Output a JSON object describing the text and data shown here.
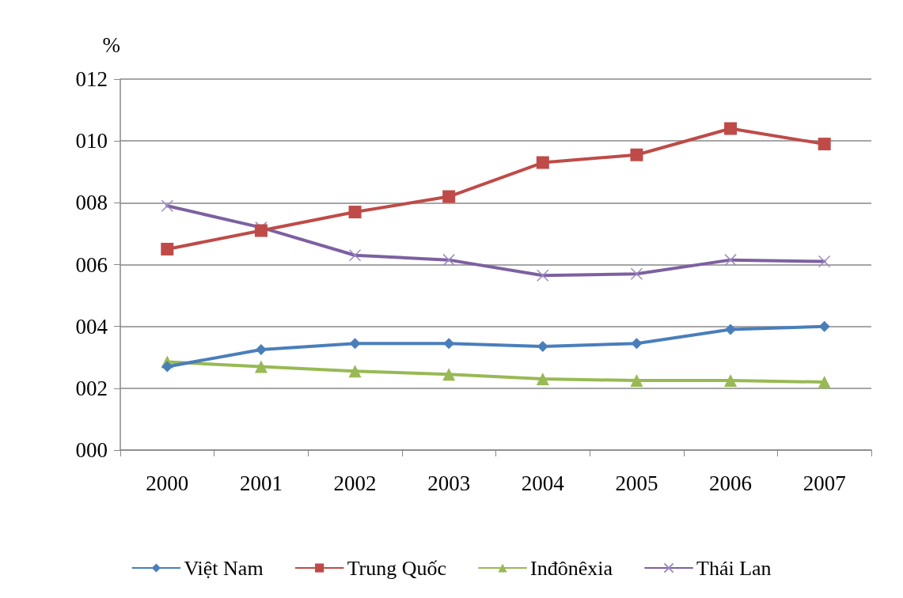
{
  "chart_data": {
    "type": "line",
    "ylabel": "%",
    "categories": [
      "2000",
      "2001",
      "2002",
      "2003",
      "2004",
      "2005",
      "2006",
      "2007"
    ],
    "series": [
      {
        "name": "Việt Nam",
        "color": "#4a7ebb",
        "marker": "diamond",
        "values": [
          2.7,
          3.25,
          3.45,
          3.45,
          3.35,
          3.45,
          3.9,
          4.0
        ]
      },
      {
        "name": "Trung Quốc",
        "color": "#be4b48",
        "marker": "square",
        "values": [
          6.5,
          7.1,
          7.7,
          8.2,
          9.3,
          9.55,
          10.4,
          9.9
        ]
      },
      {
        "name": "Inđônêxia",
        "color": "#98b954",
        "marker": "triangle",
        "values": [
          2.85,
          2.7,
          2.55,
          2.45,
          2.3,
          2.25,
          2.25,
          2.2
        ]
      },
      {
        "name": "Thái Lan",
        "color": "#7d60a0",
        "marker": "cross",
        "values": [
          7.9,
          7.2,
          6.3,
          6.15,
          5.65,
          5.7,
          6.15,
          6.1
        ]
      }
    ],
    "ylim": [
      0,
      12
    ],
    "yticks": [
      {
        "value": 0,
        "label": "000"
      },
      {
        "value": 2,
        "label": "002"
      },
      {
        "value": 4,
        "label": "004"
      },
      {
        "value": 6,
        "label": "006"
      },
      {
        "value": 8,
        "label": "008"
      },
      {
        "value": 10,
        "label": "010"
      },
      {
        "value": 12,
        "label": "012"
      }
    ],
    "grid": "y",
    "legend": "bottom",
    "line_style": "solid"
  }
}
